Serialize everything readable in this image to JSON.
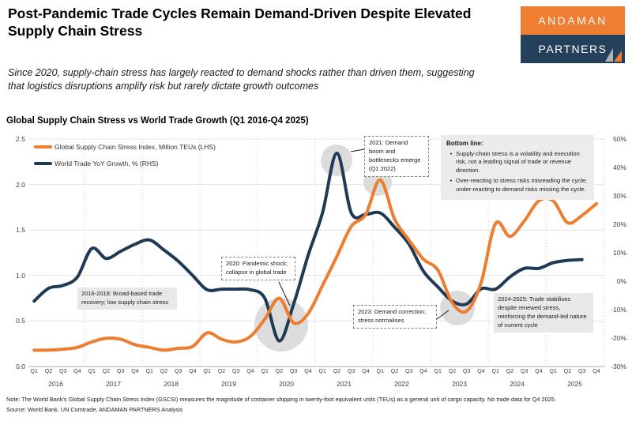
{
  "header": {
    "title": "Post-Pandemic Trade Cycles Remain Demand-Driven Despite Elevated Supply Chain Stress",
    "subtitle": "Since 2020, supply-chain stress has largely reacted to demand shocks rather than driven them, suggesting that logistics disruptions amplify risk but rarely dictate growth outcomes",
    "logo": {
      "top": "ANDAMAN",
      "bottom": "PARTNERS"
    }
  },
  "chart_data": {
    "type": "line",
    "title": "Global Supply Chain Stress vs World Trade Growth (Q1 2016-Q4 2025)",
    "quarter_labels": [
      "Q1",
      "Q2",
      "Q3",
      "Q4"
    ],
    "years": [
      "2016",
      "2017",
      "2018",
      "2019",
      "2020",
      "2021",
      "2022",
      "2023",
      "2024",
      "2025"
    ],
    "left_axis": {
      "ticks": [
        "2.5",
        "2.0",
        "1.5",
        "1.0",
        "0.5",
        "0.0"
      ],
      "min": 0,
      "max": 2.5
    },
    "right_axis": {
      "ticks": [
        "50%",
        "40%",
        "30%",
        "20%",
        "10%",
        "0%",
        "-10%",
        "-20%",
        "-30%"
      ],
      "min": -30,
      "max": 50
    },
    "grid": {
      "vertical": "year-boundaries",
      "horizontal": "left-ticks"
    },
    "legend_position": "top-left",
    "series": [
      {
        "name": "Global Supply Chain Stress Index, Million TEUs (LHS)",
        "axis": "left",
        "color": "#ED7D31",
        "values": [
          0.18,
          0.18,
          0.19,
          0.21,
          0.27,
          0.31,
          0.3,
          0.24,
          0.21,
          0.18,
          0.2,
          0.22,
          0.37,
          0.3,
          0.27,
          0.33,
          0.52,
          0.75,
          0.48,
          0.58,
          0.89,
          1.21,
          1.54,
          1.67,
          2.05,
          1.62,
          1.39,
          1.18,
          1.06,
          0.7,
          0.61,
          0.92,
          1.57,
          1.43,
          1.6,
          1.82,
          1.82,
          1.58,
          1.66,
          1.79
        ]
      },
      {
        "name": "World Trade YoY Growth, % (RHS)",
        "axis": "right",
        "color": "#1E3A55",
        "values": [
          -7,
          -2.5,
          -1.5,
          1.5,
          11.5,
          8,
          10.5,
          13,
          14.5,
          11,
          7,
          2,
          -3,
          -2.8,
          -2.8,
          -3,
          -6,
          -21,
          -8,
          9,
          24,
          45,
          24,
          23.5,
          24,
          19,
          13,
          3.5,
          -2,
          -7,
          -8,
          -2.7,
          -2.8,
          1.5,
          4.5,
          4.5,
          6.5,
          7.3,
          7.6,
          null
        ]
      }
    ],
    "annotations": {
      "recovery": {
        "text": "2016-2018: Broad-based trade recovery; low supply chain stress",
        "style": "filled"
      },
      "pandemic": {
        "text": "2020: Pandemic shock; collapse in global trade",
        "style": "dashed"
      },
      "boom": {
        "text": "2021: Demand boom and bottlenecks emerge (Q1 2022)",
        "style": "dashed"
      },
      "correction": {
        "text": "2023: Demand correction; stress normalises",
        "style": "dashed"
      },
      "stabilise": {
        "text": "2024-2025: Trade stabilises despite renewed stress, reinforcing the demand-led nature of current cycle",
        "style": "filled"
      },
      "bottom_line": {
        "title": "Bottom line:",
        "bullets": [
          "Supply-chain stress is a volatility and execution risk, not a leading signal of trade or revenue direction.",
          "Over-reacting to stress risks misreading the cycle; under-reacting to demand risks missing the cycle."
        ]
      }
    }
  },
  "footer": {
    "note": "Note: The World Bank's Global Supply Chain Stress Index (GSCSI) measures the magnitude of container shipping in twenty-foot equivalent units (TEUs) as a general unit of cargo capacity. No trade data for Q4 2025.",
    "source": "Source: World Bank, UN Comtrade, ANDAMAN PARTNERS Analysis"
  }
}
